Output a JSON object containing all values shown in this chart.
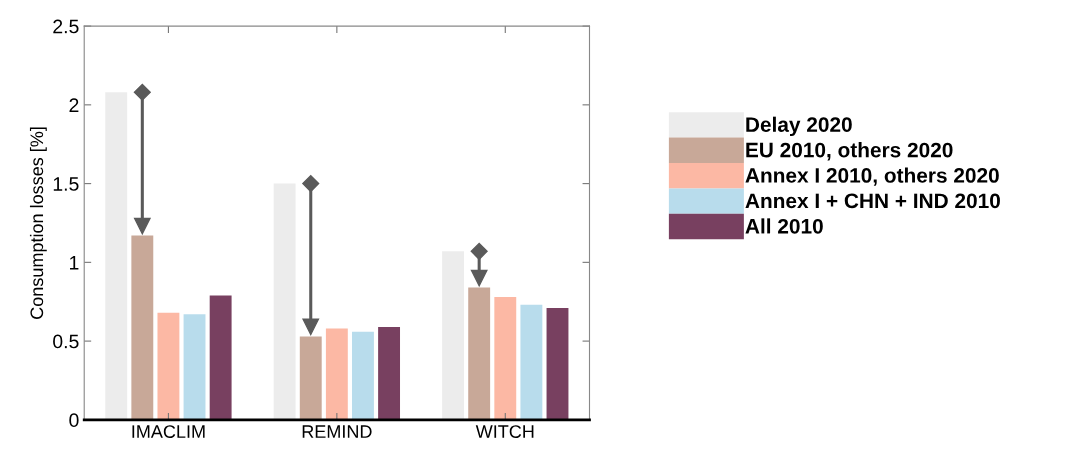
{
  "chart_data": {
    "type": "bar",
    "ylabel": "Consumption losses [%]",
    "categories": [
      "IMACLIM",
      "REMIND",
      "WITCH"
    ],
    "series": [
      {
        "name": "Delay 2020",
        "color": "#ececec",
        "values": [
          2.08,
          1.5,
          1.07
        ]
      },
      {
        "name": "EU 2010, others 2020",
        "color": "#c8a898",
        "values": [
          1.17,
          0.53,
          0.84
        ]
      },
      {
        "name": "Annex I 2010, others 2020",
        "color": "#fcb8a4",
        "values": [
          0.68,
          0.58,
          0.78
        ]
      },
      {
        "name": "Annex I + CHN + IND 2010",
        "color": "#b8dcec",
        "values": [
          0.67,
          0.56,
          0.73
        ]
      },
      {
        "name": "All 2010",
        "color": "#784060",
        "values": [
          0.79,
          0.59,
          0.71
        ]
      }
    ],
    "ylim": [
      0,
      2.5
    ],
    "yticks": [
      0,
      0.5,
      1,
      1.5,
      2,
      2.5
    ],
    "grid": false,
    "legend": "right"
  }
}
